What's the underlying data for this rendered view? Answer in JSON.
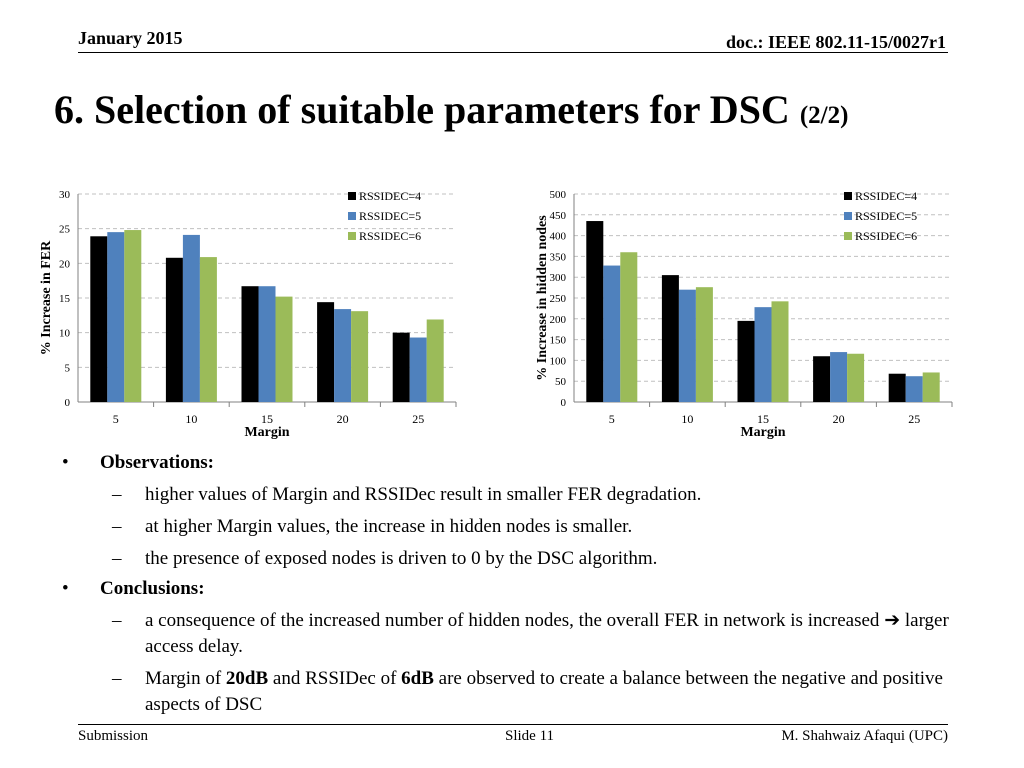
{
  "header": {
    "date": "January 2015",
    "doc": "doc.: IEEE 802.11-15/0027r1"
  },
  "title": {
    "main": "6. Selection of suitable parameters for DSC ",
    "suffix": "(2/2)"
  },
  "chart_data": [
    {
      "type": "bar",
      "categories": [
        "5",
        "10",
        "15",
        "20",
        "25"
      ],
      "series": [
        {
          "name": "RSSIDEC=4",
          "color": "#000000",
          "values": [
            23.9,
            20.8,
            16.7,
            14.4,
            10.0
          ]
        },
        {
          "name": "RSSIDEC=5",
          "color": "#4f81bd",
          "values": [
            24.5,
            24.1,
            16.7,
            13.4,
            9.3
          ]
        },
        {
          "name": "RSSIDEC=6",
          "color": "#9bbb59",
          "values": [
            24.8,
            20.9,
            15.2,
            13.1,
            11.9
          ]
        }
      ],
      "xlabel": "Margin",
      "ylabel": "% Increase in FER",
      "ylim": [
        0,
        30
      ],
      "yticks": [
        "0",
        "5",
        "10",
        "15",
        "20",
        "25",
        "30"
      ],
      "grid": true,
      "legend": "top-right"
    },
    {
      "type": "bar",
      "categories": [
        "5",
        "10",
        "15",
        "20",
        "25"
      ],
      "series": [
        {
          "name": "RSSIDEC=4",
          "color": "#000000",
          "values": [
            435,
            305,
            195,
            110,
            68
          ]
        },
        {
          "name": "RSSIDEC=5",
          "color": "#4f81bd",
          "values": [
            328,
            270,
            228,
            120,
            62
          ]
        },
        {
          "name": "RSSIDEC=6",
          "color": "#9bbb59",
          "values": [
            360,
            276,
            242,
            116,
            71
          ]
        }
      ],
      "xlabel": "Margin",
      "ylabel": "% Increase in hidden nodes",
      "ylim": [
        0,
        500
      ],
      "yticks": [
        "0",
        "50",
        "100",
        "150",
        "200",
        "250",
        "300",
        "350",
        "400",
        "450",
        "500"
      ],
      "grid": true,
      "legend": "top-right"
    }
  ],
  "bullets": [
    {
      "label": "Observations:",
      "items": [
        "higher values of Margin and RSSIDec result in smaller FER degradation.",
        "at higher Margin values, the increase in hidden nodes is smaller.",
        "the presence of exposed nodes is driven to 0 by the DSC algorithm."
      ]
    },
    {
      "label": "Conclusions:",
      "items": [
        {
          "pre": "a consequence of the increased  number of hidden nodes, the overall FER in network is increased ",
          "arrow": "➔",
          "post": " larger access delay."
        },
        {
          "t1": "Margin of ",
          "b1": "20dB",
          "t2": " and RSSIDec of ",
          "b2": "6dB",
          "t3": " are observed to create a balance between the negative and positive aspects of DSC"
        }
      ]
    }
  ],
  "bullet_glyph": "•",
  "dash_glyph": "–",
  "footer": {
    "left": "Submission",
    "middle": "Slide 11",
    "right": "M. Shahwaiz Afaqui (UPC)"
  }
}
